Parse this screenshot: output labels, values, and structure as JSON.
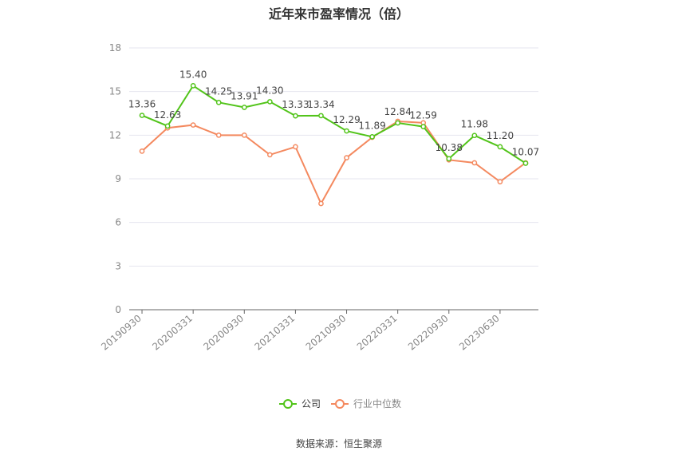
{
  "colors": {
    "company": "#52c41a",
    "industry": "#f4895f",
    "grid": "#e6e6ef",
    "axis": "#666666"
  },
  "chart_data": {
    "type": "line",
    "title": "近年来市盈率情况（倍）",
    "xlabel": "",
    "ylabel": "",
    "ylim": [
      0,
      18
    ],
    "yticks": [
      0,
      3,
      6,
      9,
      12,
      15,
      18
    ],
    "x_tick_labels": [
      "20190930",
      "20200331",
      "20200930",
      "20210331",
      "20210930",
      "20220331",
      "20220930",
      "20230630"
    ],
    "grid": true,
    "legend_position": "bottom",
    "series": [
      {
        "name": "公司",
        "values": [
          13.36,
          12.63,
          15.4,
          14.25,
          13.91,
          14.3,
          13.33,
          13.34,
          12.29,
          11.89,
          12.84,
          12.59,
          10.38,
          11.98,
          11.2,
          10.07
        ],
        "labels": [
          "13.36",
          "12.63",
          "15.40",
          "14.25",
          "13.91",
          "14.30",
          "13.33",
          "13.34",
          "12.29",
          "11.89",
          "12.84",
          "12.59",
          "10.38",
          "11.98",
          "11.20",
          "10.07"
        ]
      },
      {
        "name": "行业中位数",
        "values": [
          10.9,
          12.5,
          12.7,
          12.0,
          12.0,
          10.65,
          11.2,
          7.3,
          10.45,
          11.85,
          12.95,
          12.85,
          10.3,
          10.1,
          8.8,
          10.1
        ]
      }
    ]
  },
  "source": "数据来源：恒生聚源"
}
